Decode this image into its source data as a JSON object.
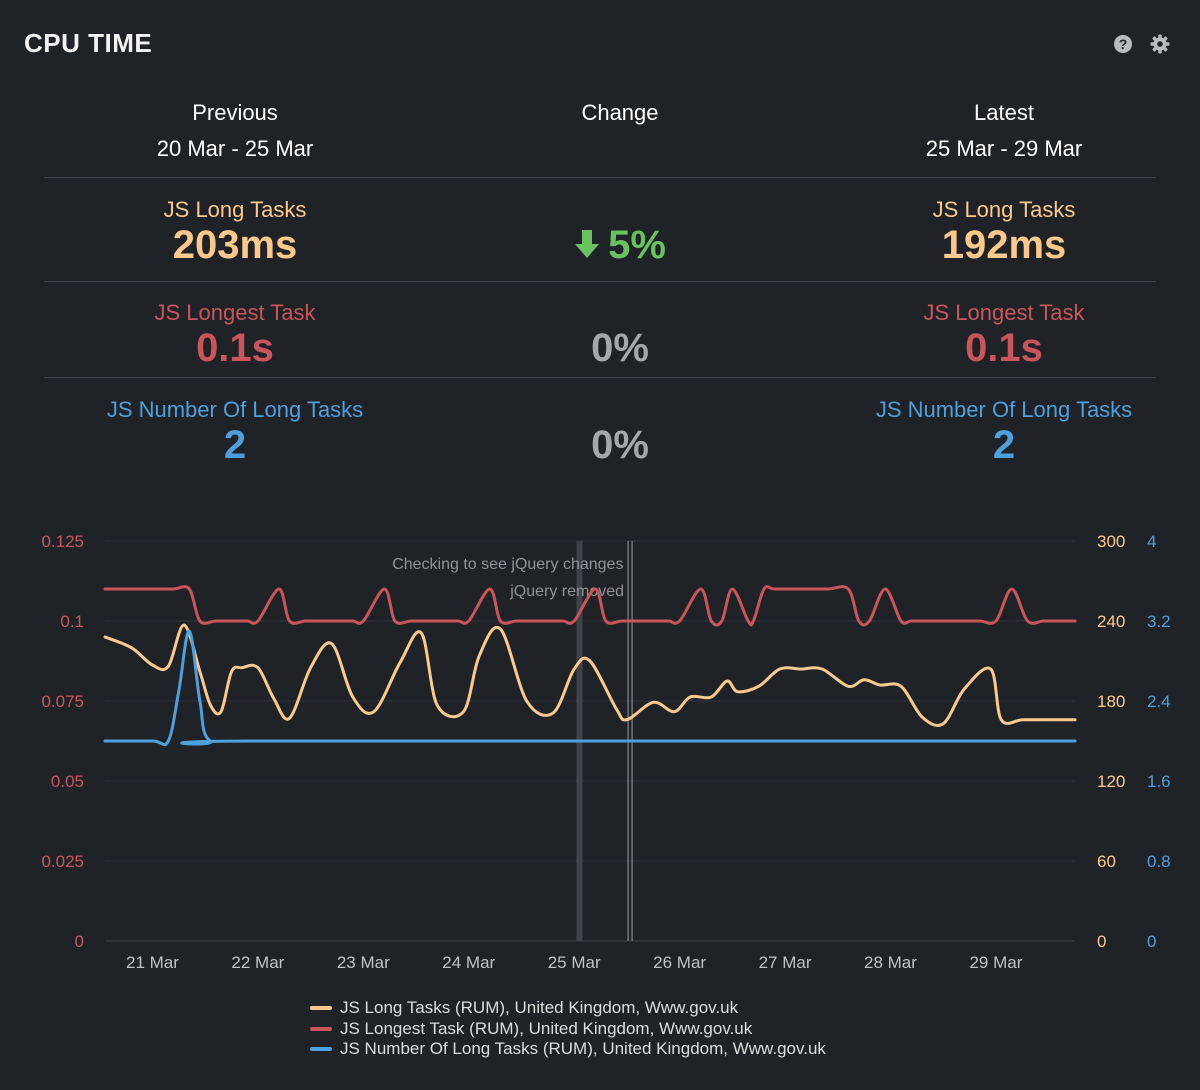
{
  "header": {
    "title": "CPU TIME",
    "help_icon": "help-icon",
    "settings_icon": "gear-icon"
  },
  "summary": {
    "previous": {
      "label": "Previous",
      "range": "20 Mar - 25 Mar"
    },
    "change": {
      "label": "Change"
    },
    "latest": {
      "label": "Latest",
      "range": "25 Mar - 29 Mar"
    },
    "rows": [
      {
        "label": "JS Long Tasks",
        "previous": "203ms",
        "latest": "192ms",
        "change": "5%",
        "change_direction": "down",
        "color": "#fdc98a"
      },
      {
        "label": "JS Longest Task",
        "previous": "0.1s",
        "latest": "0.1s",
        "change": "0%",
        "color": "#c9555a"
      },
      {
        "label": "JS Number Of Long Tasks",
        "previous": "2",
        "latest": "2",
        "change": "0%",
        "color": "#4e9fdb"
      }
    ]
  },
  "chart_data": {
    "type": "line",
    "x_tick_labels": [
      "21 Mar",
      "22 Mar",
      "23 Mar",
      "24 Mar",
      "25 Mar",
      "26 Mar",
      "27 Mar",
      "28 Mar",
      "29 Mar"
    ],
    "x_range_days": [
      20.55,
      29.75
    ],
    "left_axis": {
      "ticks": [
        "0",
        "0.025",
        "0.05",
        "0.075",
        "0.1",
        "0.125"
      ],
      "range": [
        0,
        0.125
      ],
      "color": "#c9555a"
    },
    "right_axis_1": {
      "ticks": [
        "0",
        "60",
        "120",
        "180",
        "240",
        "300"
      ],
      "range": [
        0,
        300
      ],
      "color": "#fdc98a"
    },
    "right_axis_2": {
      "ticks": [
        "0",
        "0.8",
        "1.6",
        "2.4",
        "3.2",
        "4"
      ],
      "range": [
        0,
        4
      ],
      "color": "#4e9fdb"
    },
    "annotations": [
      {
        "text": "Checking to see jQuery changes",
        "day": 25.05
      },
      {
        "text": "jQuery removed",
        "day": 25.53
      }
    ],
    "series": [
      {
        "name": "JS Long Tasks (RUM), United Kingdom, Www.gov.uk",
        "axis": "right_axis_1",
        "color": "#fdc98a",
        "x": [
          20.55,
          20.8,
          21.0,
          21.15,
          21.3,
          21.45,
          21.55,
          21.65,
          21.75,
          21.85,
          22.0,
          22.15,
          22.3,
          22.5,
          22.7,
          22.9,
          23.1,
          23.35,
          23.55,
          23.7,
          23.95,
          24.1,
          24.3,
          24.55,
          24.8,
          25.0,
          25.15,
          25.4,
          25.5,
          25.75,
          25.95,
          26.1,
          26.3,
          26.45,
          26.55,
          26.75,
          26.95,
          27.15,
          27.35,
          27.6,
          27.75,
          27.9,
          28.1,
          28.3,
          28.5,
          28.7,
          28.95,
          29.05,
          29.25,
          29.45,
          29.6,
          29.75
        ],
        "y": [
          228,
          220,
          207,
          206,
          237,
          202,
          177,
          172,
          202,
          205,
          205,
          182,
          167,
          205,
          223,
          183,
          172,
          209,
          231,
          177,
          172,
          214,
          234,
          180,
          171,
          204,
          210,
          174,
          166,
          179,
          172,
          183,
          183,
          195,
          187,
          191,
          204,
          204,
          204,
          191,
          196,
          192,
          191,
          168,
          163,
          189,
          204,
          166,
          166,
          166,
          166,
          166
        ]
      },
      {
        "name": "JS Longest Task (RUM), United Kingdom, Www.gov.uk",
        "axis": "left_axis",
        "color": "#c9555a",
        "x": [
          20.55,
          21.0,
          21.2,
          21.35,
          21.45,
          21.6,
          21.75,
          21.9,
          22.0,
          22.2,
          22.3,
          22.45,
          22.6,
          22.75,
          22.9,
          23.0,
          23.2,
          23.3,
          23.45,
          23.6,
          23.75,
          23.9,
          24.0,
          24.2,
          24.3,
          24.45,
          24.6,
          24.8,
          24.9,
          25.0,
          25.2,
          25.3,
          25.45,
          25.6,
          25.8,
          25.9,
          26.0,
          26.2,
          26.3,
          26.4,
          26.5,
          26.65,
          26.7,
          26.8,
          26.9,
          27.1,
          27.4,
          27.6,
          27.7,
          27.8,
          27.95,
          28.1,
          28.2,
          28.4,
          28.55,
          28.7,
          28.85,
          29.0,
          29.15,
          29.3,
          29.45,
          29.6,
          29.75
        ],
        "y": [
          0.11,
          0.11,
          0.11,
          0.11,
          0.1,
          0.1,
          0.1,
          0.1,
          0.1,
          0.11,
          0.1,
          0.1,
          0.1,
          0.1,
          0.1,
          0.1,
          0.11,
          0.1,
          0.1,
          0.1,
          0.1,
          0.1,
          0.1,
          0.11,
          0.1,
          0.1,
          0.1,
          0.1,
          0.1,
          0.1,
          0.11,
          0.1,
          0.1,
          0.1,
          0.1,
          0.1,
          0.1,
          0.11,
          0.1,
          0.1,
          0.11,
          0.1,
          0.1,
          0.11,
          0.11,
          0.11,
          0.11,
          0.11,
          0.1,
          0.1,
          0.11,
          0.1,
          0.1,
          0.1,
          0.1,
          0.1,
          0.1,
          0.1,
          0.11,
          0.1,
          0.1,
          0.1,
          0.1
        ]
      },
      {
        "name": "JS Number Of Long Tasks (RUM), United Kingdom, Www.gov.uk",
        "axis": "right_axis_2",
        "color": "#4e9fdb",
        "x": [
          20.55,
          21.0,
          21.15,
          21.25,
          21.35,
          21.45,
          21.55,
          22.0,
          29.75
        ],
        "y": [
          2,
          2,
          2,
          2.5,
          3.1,
          2.4,
          2,
          2,
          2
        ]
      }
    ]
  }
}
